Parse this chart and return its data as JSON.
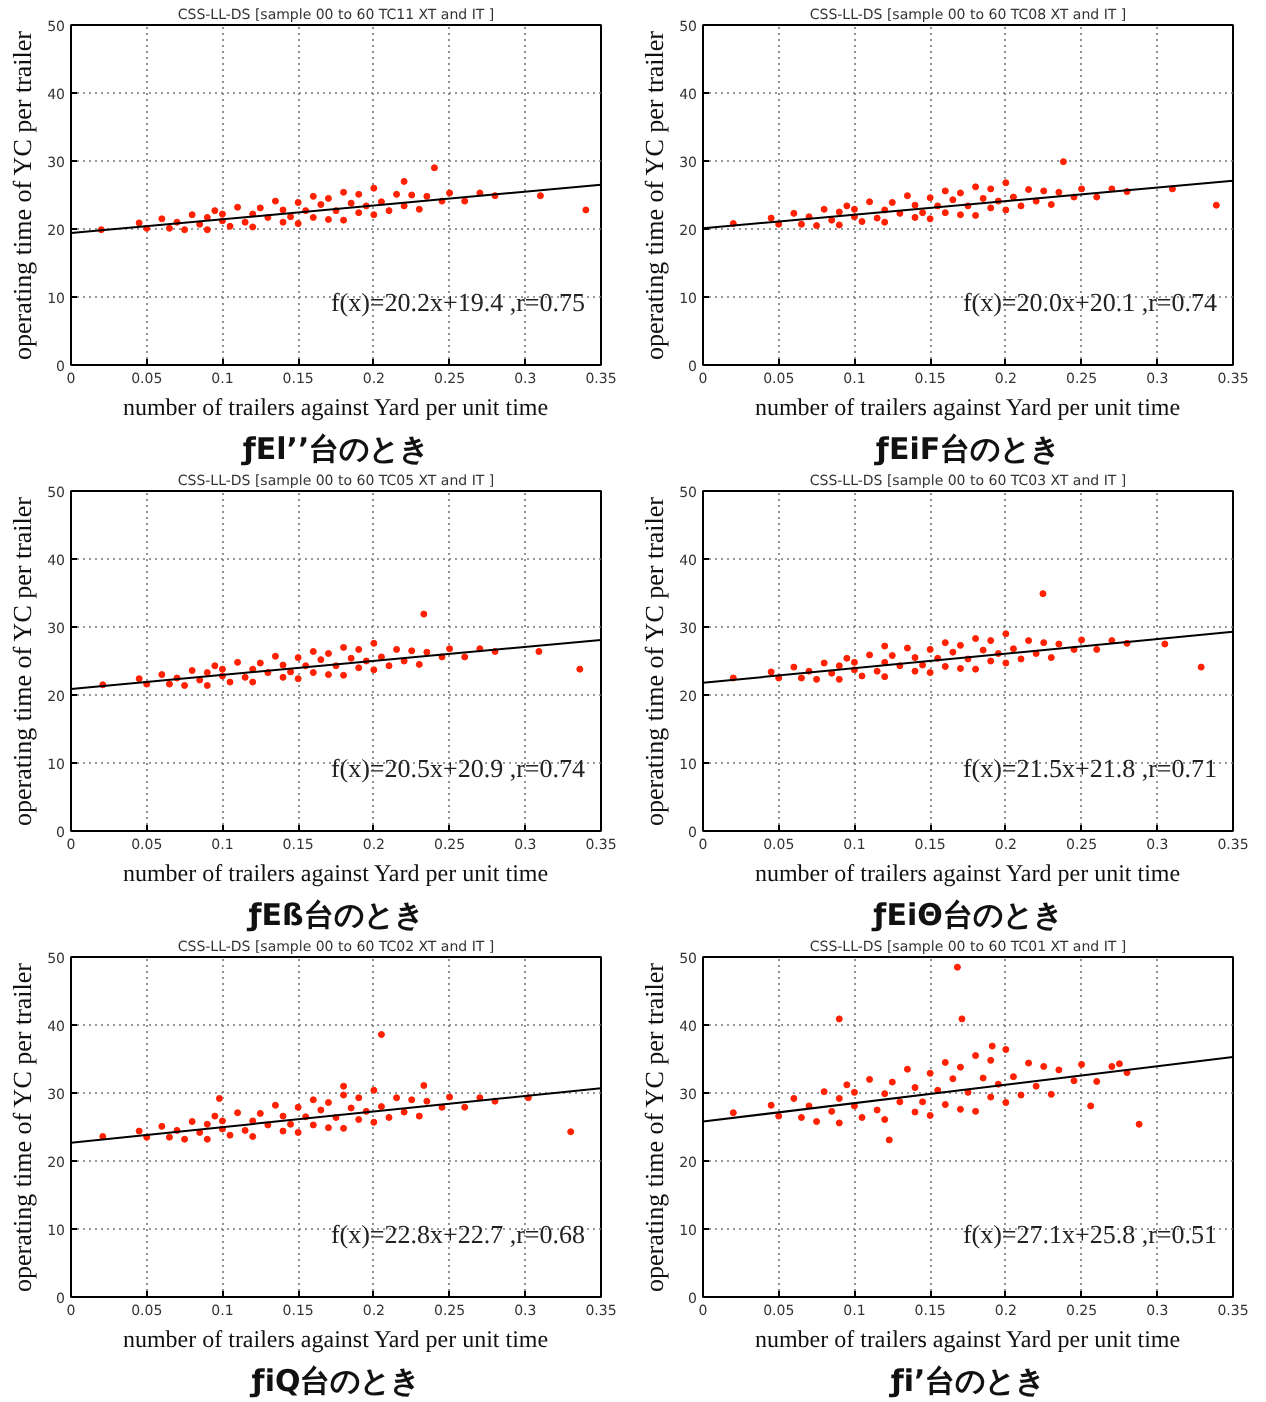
{
  "chart_data": [
    {
      "type": "scatter",
      "title": "CSS-LL-DS [sample 00 to 60 TC11 XT and IT ]",
      "xlabel": "number of trailers against Yard per unit time",
      "ylabel": "operating time of YC per trailer",
      "annotations": [
        "f(x)=20.2x+19.4 ,r=0.75",
        "ƒEl’’台のとき"
      ],
      "xlim": [
        0,
        0.35
      ],
      "xticks": [
        0,
        0.05,
        0.1,
        0.15,
        0.2,
        0.25,
        0.3,
        0.35
      ],
      "ylim": [
        0,
        50
      ],
      "yticks": [
        0,
        10,
        20,
        30,
        40,
        50
      ],
      "grid": true,
      "series": [
        {
          "marker": "circle",
          "color": "#ff2000",
          "x": [
            0.045,
            0.05,
            0.06,
            0.065,
            0.07,
            0.075,
            0.08,
            0.085,
            0.09,
            0.09,
            0.095,
            0.1,
            0.1,
            0.105,
            0.11,
            0.115,
            0.12,
            0.12,
            0.125,
            0.13,
            0.135,
            0.14,
            0.14,
            0.145,
            0.15,
            0.15,
            0.155,
            0.16,
            0.16,
            0.165,
            0.17,
            0.17,
            0.175,
            0.18,
            0.18,
            0.185,
            0.19,
            0.19,
            0.195,
            0.2,
            0.2,
            0.205,
            0.21,
            0.215,
            0.22,
            0.225,
            0.23,
            0.235,
            0.245,
            0.25,
            0.26,
            0.27,
            0.28,
            0.02,
            0.24,
            0.31,
            0.34,
            0.22
          ],
          "values": [
            20.9,
            20.1,
            21.5,
            20.1,
            21.0,
            19.9,
            22.1,
            20.7,
            21.7,
            19.9,
            22.7,
            21.2,
            22.2,
            20.4,
            23.2,
            21.0,
            22.2,
            20.3,
            23.1,
            21.7,
            24.1,
            21.0,
            22.8,
            21.8,
            23.9,
            20.8,
            22.7,
            24.8,
            21.7,
            23.6,
            21.4,
            24.5,
            22.7,
            25.4,
            21.3,
            23.8,
            22.4,
            25.1,
            23.4,
            22.1,
            26.0,
            24.0,
            22.7,
            25.1,
            23.4,
            25.0,
            22.9,
            24.8,
            24.1,
            25.3,
            24.1,
            25.3,
            24.9,
            19.9,
            29.0,
            24.9,
            22.8,
            27.0
          ]
        },
        {
          "type": "line",
          "color": "#000000",
          "line_style": "solid",
          "x": [
            0,
            0.35
          ],
          "values": [
            19.4,
            26.5
          ]
        }
      ]
    },
    {
      "type": "scatter",
      "title": "CSS-LL-DS [sample 00 to 60 TC08 XT and IT ]",
      "xlabel": "number of trailers against Yard per unit time",
      "ylabel": "operating time of YC per trailer",
      "annotations": [
        "f(x)=20.0x+20.1 ,r=0.74",
        "ƒEiF台のとき"
      ],
      "xlim": [
        0,
        0.35
      ],
      "xticks": [
        0,
        0.05,
        0.1,
        0.15,
        0.2,
        0.25,
        0.3,
        0.35
      ],
      "ylim": [
        0,
        50
      ],
      "yticks": [
        0,
        10,
        20,
        30,
        40,
        50
      ],
      "grid": true,
      "series": [
        {
          "marker": "circle",
          "color": "#ff2000",
          "x": [
            0.045,
            0.05,
            0.06,
            0.065,
            0.07,
            0.075,
            0.08,
            0.085,
            0.09,
            0.09,
            0.095,
            0.1,
            0.1,
            0.105,
            0.11,
            0.115,
            0.12,
            0.12,
            0.125,
            0.13,
            0.135,
            0.14,
            0.14,
            0.145,
            0.15,
            0.15,
            0.155,
            0.16,
            0.16,
            0.165,
            0.17,
            0.17,
            0.175,
            0.18,
            0.18,
            0.185,
            0.19,
            0.19,
            0.195,
            0.2,
            0.2,
            0.205,
            0.21,
            0.215,
            0.22,
            0.225,
            0.23,
            0.235,
            0.245,
            0.25,
            0.26,
            0.27,
            0.28,
            0.02,
            0.238,
            0.31,
            0.339
          ],
          "values": [
            21.6,
            20.7,
            22.3,
            20.7,
            21.8,
            20.5,
            22.9,
            21.3,
            22.5,
            20.6,
            23.4,
            21.8,
            22.9,
            21.1,
            24.0,
            21.6,
            22.8,
            21.0,
            23.9,
            22.3,
            24.9,
            21.7,
            23.5,
            22.4,
            24.6,
            21.5,
            23.4,
            25.6,
            22.4,
            24.3,
            22.1,
            25.3,
            23.4,
            26.2,
            22.0,
            24.5,
            23.1,
            25.9,
            24.1,
            22.8,
            26.8,
            24.7,
            23.4,
            25.8,
            24.1,
            25.6,
            23.6,
            25.4,
            24.7,
            25.9,
            24.7,
            25.9,
            25.5,
            20.8,
            29.9,
            25.9,
            23.5
          ]
        },
        {
          "type": "line",
          "color": "#000000",
          "line_style": "solid",
          "x": [
            0,
            0.35
          ],
          "values": [
            20.1,
            27.1
          ]
        }
      ]
    },
    {
      "type": "scatter",
      "title": "CSS-LL-DS [sample 00 to 60 TC05 XT and IT ]",
      "xlabel": "number of trailers against Yard per unit time",
      "ylabel": "operating time of YC per trailer",
      "annotations": [
        "f(x)=20.5x+20.9 ,r=0.74",
        "ƒEß台のとき"
      ],
      "xlim": [
        0,
        0.35
      ],
      "xticks": [
        0,
        0.05,
        0.1,
        0.15,
        0.2,
        0.25,
        0.3,
        0.35
      ],
      "ylim": [
        0,
        50
      ],
      "yticks": [
        0,
        10,
        20,
        30,
        40,
        50
      ],
      "grid": true,
      "series": [
        {
          "marker": "circle",
          "color": "#ff2000",
          "x": [
            0.045,
            0.05,
            0.06,
            0.065,
            0.07,
            0.075,
            0.08,
            0.085,
            0.09,
            0.09,
            0.095,
            0.1,
            0.1,
            0.105,
            0.11,
            0.115,
            0.12,
            0.12,
            0.125,
            0.13,
            0.135,
            0.14,
            0.14,
            0.145,
            0.15,
            0.15,
            0.155,
            0.16,
            0.16,
            0.165,
            0.17,
            0.17,
            0.175,
            0.18,
            0.18,
            0.185,
            0.19,
            0.19,
            0.195,
            0.2,
            0.2,
            0.205,
            0.21,
            0.215,
            0.22,
            0.225,
            0.23,
            0.235,
            0.245,
            0.25,
            0.26,
            0.27,
            0.28,
            0.021,
            0.233,
            0.309,
            0.336
          ],
          "values": [
            22.4,
            21.6,
            23.0,
            21.6,
            22.5,
            21.4,
            23.6,
            22.2,
            23.3,
            21.4,
            24.3,
            22.8,
            23.8,
            21.9,
            24.8,
            22.6,
            23.8,
            21.9,
            24.7,
            23.3,
            25.7,
            22.6,
            24.4,
            23.4,
            25.5,
            22.4,
            24.3,
            26.4,
            23.3,
            25.2,
            23.0,
            26.1,
            24.3,
            27.0,
            22.9,
            25.4,
            24.0,
            26.7,
            25.0,
            23.7,
            27.6,
            25.6,
            24.3,
            26.7,
            25.0,
            26.5,
            24.5,
            26.3,
            25.6,
            26.8,
            25.6,
            26.8,
            26.4,
            21.5,
            31.9,
            26.4,
            23.8
          ]
        },
        {
          "type": "line",
          "color": "#000000",
          "line_style": "solid",
          "x": [
            0,
            0.35
          ],
          "values": [
            20.9,
            28.1
          ]
        }
      ]
    },
    {
      "type": "scatter",
      "title": "CSS-LL-DS [sample 00 to 60 TC03 XT and IT ]",
      "xlabel": "number of trailers against Yard per unit time",
      "ylabel": "operating time of YC per trailer",
      "annotations": [
        "f(x)=21.5x+21.8 ,r=0.71",
        "ƒEiΘ台のとき"
      ],
      "xlim": [
        0,
        0.35
      ],
      "xticks": [
        0,
        0.05,
        0.1,
        0.15,
        0.2,
        0.25,
        0.3,
        0.35
      ],
      "ylim": [
        0,
        50
      ],
      "yticks": [
        0,
        10,
        20,
        30,
        40,
        50
      ],
      "grid": true,
      "series": [
        {
          "marker": "circle",
          "color": "#ff2000",
          "x": [
            0.045,
            0.05,
            0.06,
            0.065,
            0.07,
            0.075,
            0.08,
            0.085,
            0.09,
            0.09,
            0.095,
            0.1,
            0.1,
            0.105,
            0.11,
            0.115,
            0.12,
            0.12,
            0.125,
            0.13,
            0.135,
            0.14,
            0.14,
            0.145,
            0.15,
            0.15,
            0.155,
            0.16,
            0.16,
            0.165,
            0.17,
            0.17,
            0.175,
            0.18,
            0.18,
            0.185,
            0.19,
            0.19,
            0.195,
            0.2,
            0.2,
            0.205,
            0.21,
            0.215,
            0.22,
            0.225,
            0.23,
            0.235,
            0.245,
            0.25,
            0.26,
            0.27,
            0.28,
            0.02,
            0.2245,
            0.305,
            0.329,
            0.12
          ],
          "values": [
            23.4,
            22.5,
            24.1,
            22.5,
            23.5,
            22.3,
            24.7,
            23.2,
            24.3,
            22.3,
            25.4,
            23.7,
            24.8,
            22.8,
            25.9,
            23.5,
            24.8,
            22.7,
            25.8,
            24.3,
            26.9,
            23.5,
            25.5,
            24.4,
            26.7,
            23.3,
            25.4,
            27.7,
            24.2,
            26.3,
            23.9,
            27.3,
            25.3,
            28.3,
            23.8,
            26.6,
            25.0,
            28.0,
            26.1,
            24.7,
            29.0,
            26.8,
            25.3,
            28.0,
            26.1,
            27.7,
            25.5,
            27.5,
            26.7,
            28.1,
            26.7,
            28.0,
            27.6,
            22.5,
            34.9,
            27.5,
            24.1,
            27.2
          ]
        },
        {
          "type": "line",
          "color": "#000000",
          "line_style": "solid",
          "x": [
            0,
            0.35
          ],
          "values": [
            21.8,
            29.3
          ]
        }
      ]
    },
    {
      "type": "scatter",
      "title": "CSS-LL-DS [sample 00 to 60 TC02 XT and IT ]",
      "xlabel": "number of trailers against Yard per unit time",
      "ylabel": "operating time of YC per trailer",
      "annotations": [
        "f(x)=22.8x+22.7 ,r=0.68",
        "ƒiQ台のとき"
      ],
      "xlim": [
        0,
        0.35
      ],
      "xticks": [
        0,
        0.05,
        0.1,
        0.15,
        0.2,
        0.25,
        0.3,
        0.35
      ],
      "ylim": [
        0,
        50
      ],
      "yticks": [
        0,
        10,
        20,
        30,
        40,
        50
      ],
      "grid": true,
      "series": [
        {
          "marker": "circle",
          "color": "#ff2000",
          "x": [
            0.045,
            0.05,
            0.06,
            0.065,
            0.07,
            0.075,
            0.08,
            0.085,
            0.09,
            0.09,
            0.095,
            0.1,
            0.1,
            0.105,
            0.11,
            0.115,
            0.12,
            0.12,
            0.125,
            0.13,
            0.135,
            0.14,
            0.14,
            0.145,
            0.15,
            0.15,
            0.155,
            0.16,
            0.16,
            0.165,
            0.17,
            0.17,
            0.175,
            0.18,
            0.18,
            0.185,
            0.19,
            0.19,
            0.195,
            0.2,
            0.2,
            0.205,
            0.21,
            0.215,
            0.22,
            0.225,
            0.23,
            0.235,
            0.245,
            0.25,
            0.26,
            0.27,
            0.28,
            0.021,
            0.205,
            0.33,
            0.302,
            0.233,
            0.098,
            0.18
          ],
          "values": [
            24.4,
            23.5,
            25.1,
            23.5,
            24.5,
            23.2,
            25.8,
            24.2,
            25.4,
            23.2,
            26.6,
            24.7,
            25.9,
            23.8,
            27.1,
            24.5,
            25.9,
            23.6,
            27.0,
            25.3,
            28.2,
            24.4,
            26.6,
            25.4,
            27.9,
            24.2,
            26.5,
            29.0,
            25.3,
            27.5,
            24.9,
            28.6,
            26.4,
            29.7,
            24.8,
            27.8,
            26.1,
            29.3,
            27.3,
            25.7,
            30.4,
            28.0,
            26.4,
            29.3,
            27.2,
            29.0,
            26.6,
            28.8,
            27.9,
            29.4,
            27.9,
            29.3,
            28.8,
            23.6,
            38.6,
            24.3,
            29.3,
            31.1,
            29.2,
            31.0
          ]
        },
        {
          "type": "line",
          "color": "#000000",
          "line_style": "solid",
          "x": [
            0,
            0.35
          ],
          "values": [
            22.7,
            30.7
          ]
        }
      ]
    },
    {
      "type": "scatter",
      "title": "CSS-LL-DS [sample 00 to 60 TC01 XT and IT ]",
      "xlabel": "number of trailers against Yard per unit time",
      "ylabel": "operating time of YC per trailer",
      "annotations": [
        "f(x)=27.1x+25.8 ,r=0.51",
        "ƒi’台のとき"
      ],
      "xlim": [
        0,
        0.35
      ],
      "xticks": [
        0,
        0.05,
        0.1,
        0.15,
        0.2,
        0.25,
        0.3,
        0.35
      ],
      "ylim": [
        0,
        50
      ],
      "yticks": [
        0,
        10,
        20,
        30,
        40,
        50
      ],
      "grid": true,
      "series": [
        {
          "marker": "circle",
          "color": "#ff2000",
          "x": [
            0.045,
            0.05,
            0.06,
            0.065,
            0.07,
            0.075,
            0.08,
            0.085,
            0.09,
            0.09,
            0.095,
            0.1,
            0.1,
            0.105,
            0.11,
            0.115,
            0.12,
            0.12,
            0.125,
            0.13,
            0.135,
            0.14,
            0.14,
            0.145,
            0.15,
            0.15,
            0.155,
            0.16,
            0.16,
            0.165,
            0.17,
            0.17,
            0.175,
            0.18,
            0.18,
            0.185,
            0.19,
            0.19,
            0.195,
            0.2,
            0.2,
            0.205,
            0.21,
            0.215,
            0.22,
            0.225,
            0.23,
            0.235,
            0.245,
            0.25,
            0.26,
            0.27,
            0.28,
            0.02,
            0.09,
            0.168,
            0.171,
            0.191,
            0.123,
            0.288,
            0.275,
            0.256
          ],
          "values": [
            28.2,
            26.6,
            29.2,
            26.4,
            28.1,
            25.8,
            30.2,
            27.3,
            29.2,
            25.6,
            31.2,
            28.1,
            30.1,
            26.4,
            32.0,
            27.5,
            29.9,
            26.1,
            31.6,
            28.7,
            33.5,
            27.2,
            30.8,
            28.7,
            32.9,
            26.7,
            30.4,
            34.5,
            28.3,
            32.1,
            27.6,
            33.8,
            30.1,
            35.5,
            27.3,
            32.2,
            29.4,
            34.8,
            31.3,
            28.6,
            36.4,
            32.4,
            29.7,
            34.4,
            31.0,
            33.9,
            29.8,
            33.4,
            31.8,
            34.2,
            31.7,
            33.9,
            33.0,
            27.1,
            40.9,
            48.5,
            40.9,
            36.9,
            23.1,
            25.4,
            34.3,
            28.1
          ]
        },
        {
          "type": "line",
          "color": "#000000",
          "line_style": "solid",
          "x": [
            0,
            0.35
          ],
          "values": [
            25.8,
            35.3
          ]
        }
      ]
    }
  ]
}
